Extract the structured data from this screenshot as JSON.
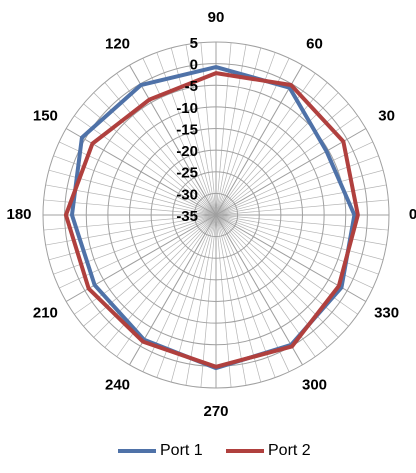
{
  "chart_data": {
    "type": "polar",
    "theta": [
      0,
      30,
      60,
      90,
      120,
      150,
      180,
      210,
      240,
      270,
      300,
      330
    ],
    "series": [
      {
        "name": "Port 1",
        "color": "#4f72a8",
        "values": [
          -3,
          -5.5,
          -1,
          -0.8,
          -0.3,
          0.8,
          -1.7,
          -2.6,
          -1.7,
          0.4,
          -0.3,
          -1.5
        ]
      },
      {
        "name": "Port 2",
        "color": "#b0403e",
        "values": [
          -2.2,
          -1,
          -0.3,
          -2.2,
          -4.2,
          -2,
          -0.3,
          -1,
          -1.2,
          0.1,
          0.1,
          -2.2
        ]
      }
    ],
    "rlim": [
      -35,
      5
    ],
    "rticks": [
      5,
      0,
      -5,
      -10,
      -15,
      -20,
      -25,
      -30,
      -35
    ],
    "thetaticks": [
      0,
      30,
      60,
      90,
      120,
      150,
      180,
      210,
      240,
      270,
      300,
      330
    ],
    "grid": true,
    "legend": "bottom"
  }
}
